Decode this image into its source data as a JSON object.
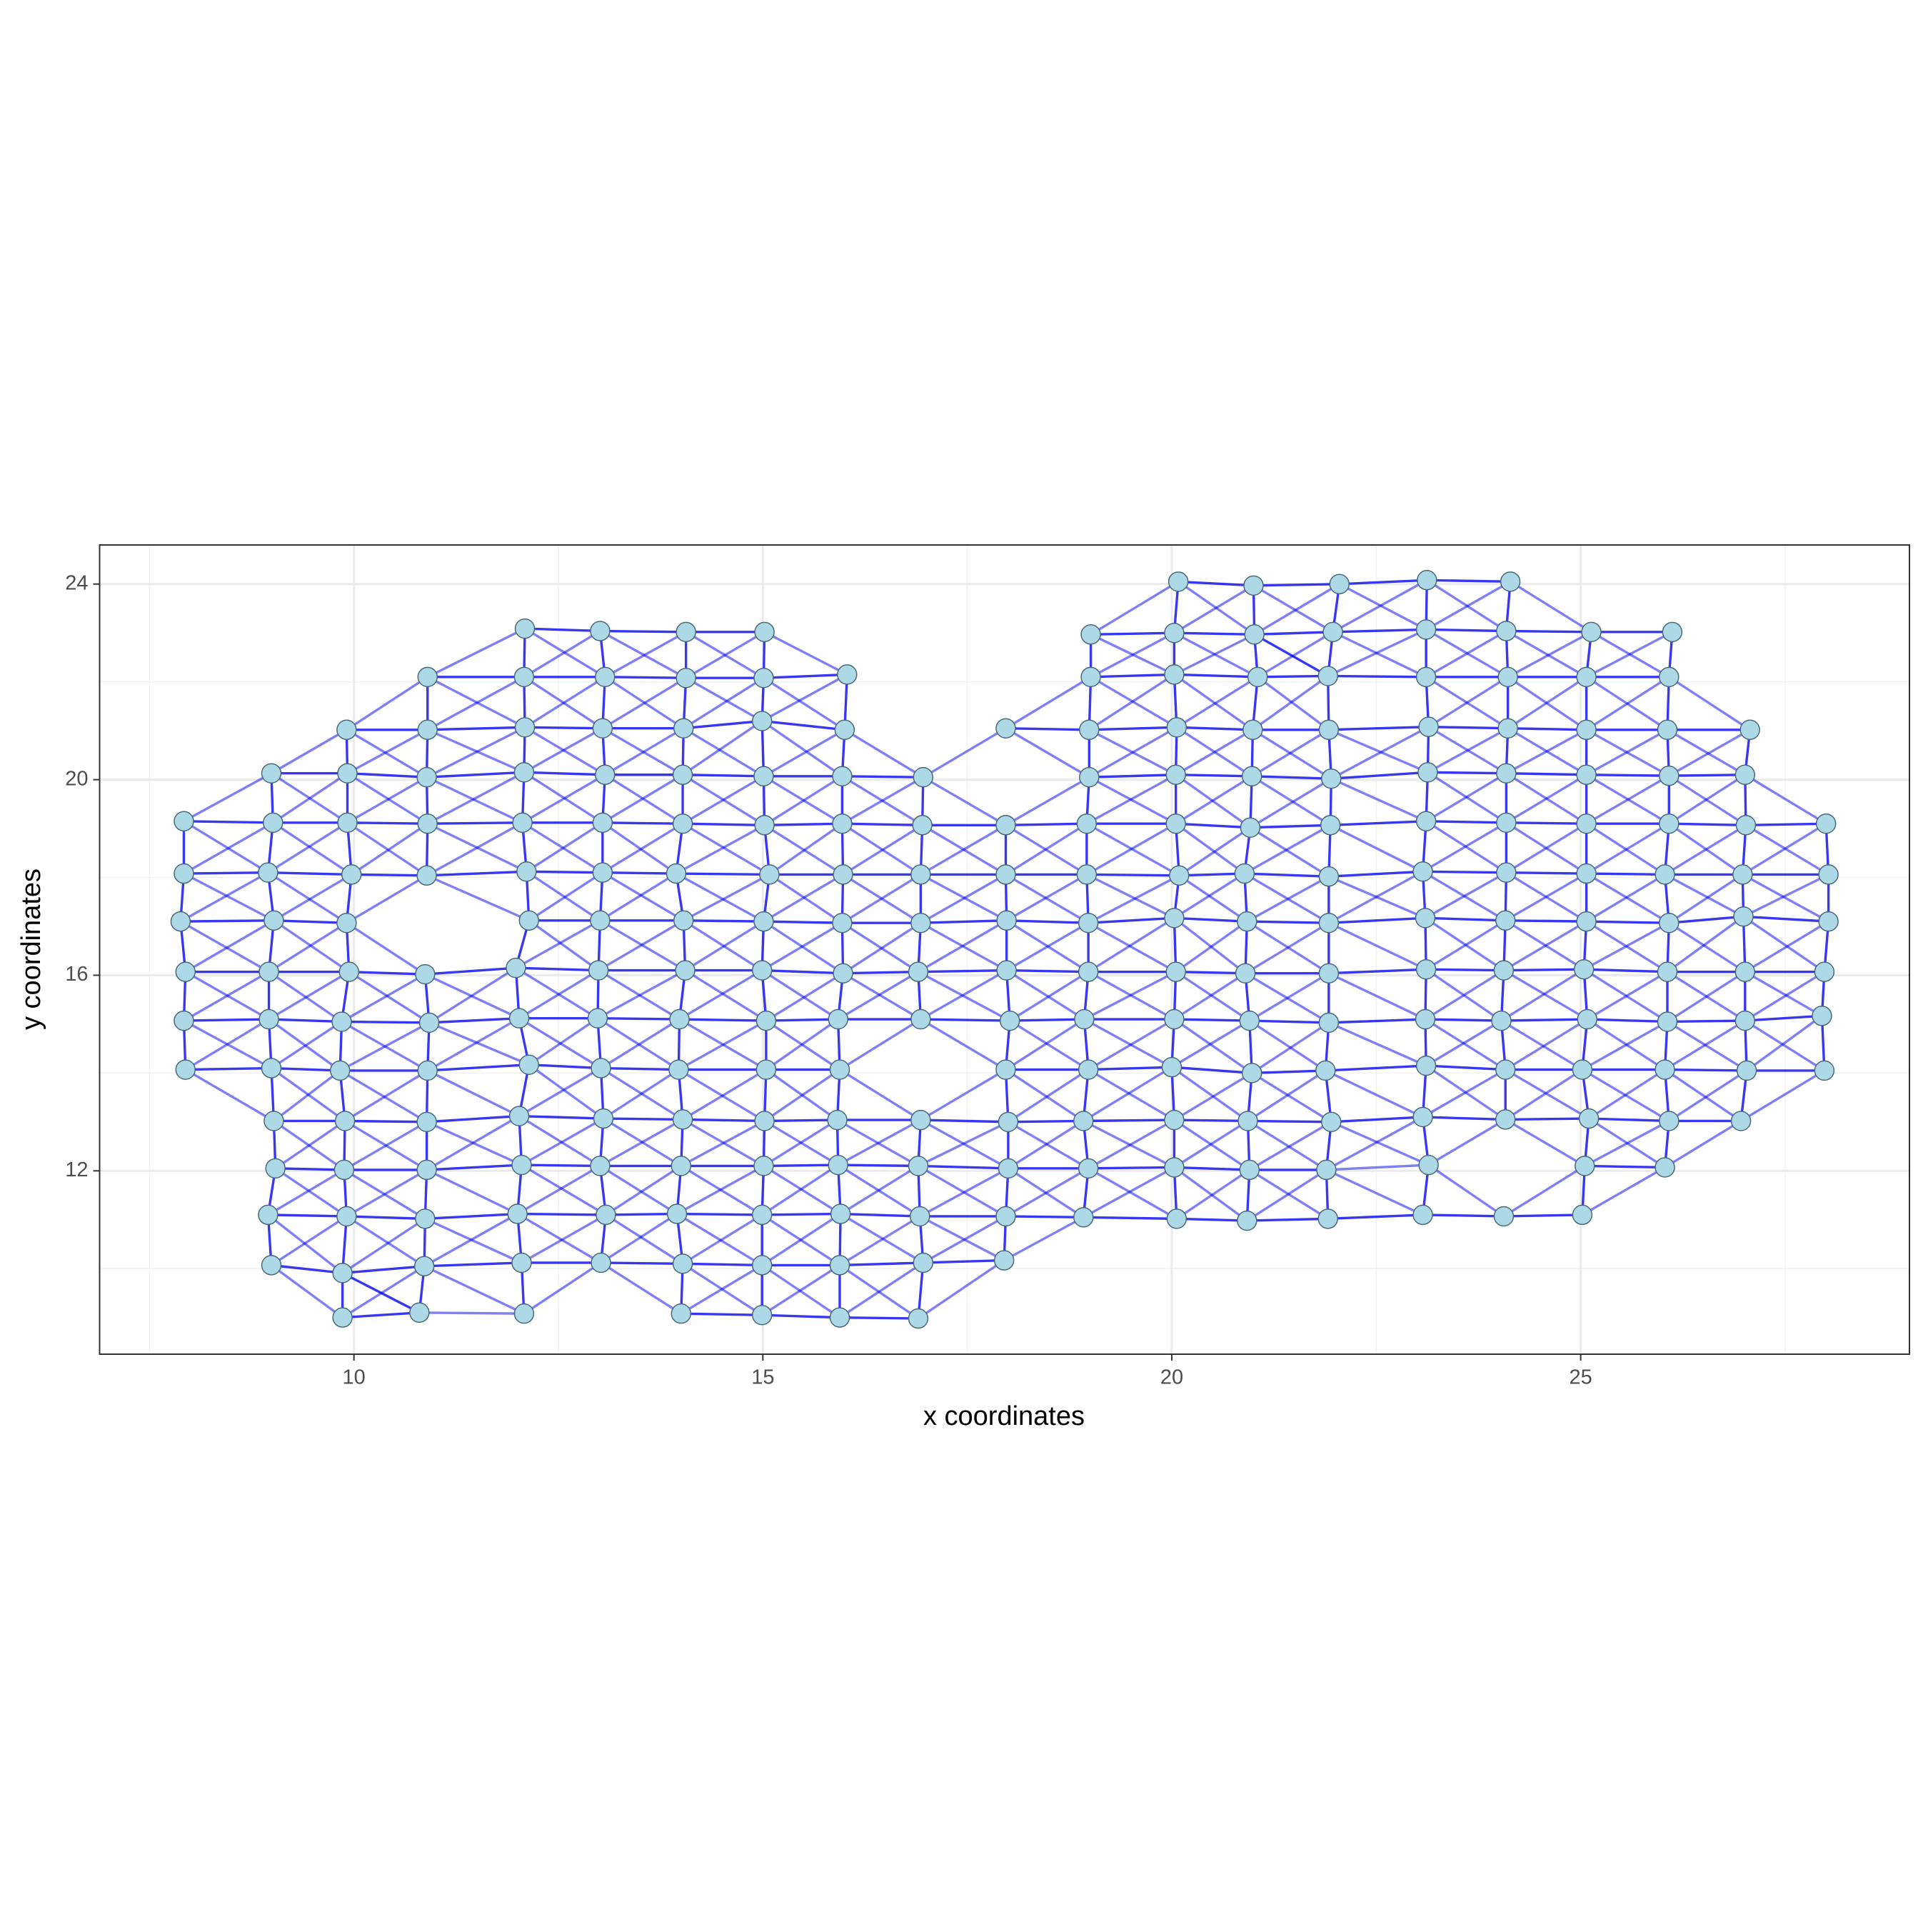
{
  "chart_data": {
    "type": "scatter",
    "x_label": "x coordinates",
    "y_label": "y coordinates",
    "xlim": [
      6.89,
      29.02
    ],
    "ylim": [
      8.25,
      24.8
    ],
    "xticks": [
      10,
      15,
      20,
      25
    ],
    "yticks": [
      12,
      16,
      20,
      24
    ],
    "grid": true,
    "color": "#add8e6",
    "edge_color": "#0000ee",
    "x": [
      20.08,
      21.0,
      22.05,
      23.12,
      24.14,
      12.09,
      13.01,
      14.06,
      15.02,
      19.01,
      20.03,
      21.01,
      21.97,
      23.11,
      24.09,
      25.13,
      26.12,
      10.9,
      12.08,
      13.07,
      14.06,
      15.01,
      16.03,
      19.01,
      20.03,
      21.05,
      21.91,
      23.11,
      24.11,
      25.07,
      26.08,
      9.91,
      10.9,
      12.09,
      13.04,
      14.03,
      14.99,
      16.0,
      17.97,
      18.99,
      20.06,
      20.99,
      21.92,
      23.14,
      24.11,
      25.07,
      26.06,
      27.07,
      8.99,
      9.92,
      10.89,
      12.08,
      13.07,
      14.02,
      15.01,
      15.97,
      16.96,
      18.99,
      20.05,
      20.98,
      21.95,
      23.13,
      24.09,
      25.07,
      26.08,
      27.01,
      7.92,
      9.01,
      9.92,
      10.9,
      12.06,
      13.04,
      14.02,
      15.02,
      15.97,
      16.95,
      17.97,
      18.96,
      20.05,
      20.96,
      21.94,
      23.11,
      24.09,
      25.07,
      26.08,
      27.02,
      28.0,
      7.92,
      8.95,
      9.97,
      10.89,
      12.11,
      13.04,
      13.94,
      15.08,
      15.98,
      16.93,
      17.97,
      18.96,
      20.09,
      20.89,
      21.92,
      23.07,
      24.09,
      25.07,
      26.03,
      26.98,
      28.03,
      7.88,
      9.02,
      9.91,
      12.14,
      13.01,
      14.03,
      15.01,
      15.97,
      16.93,
      17.98,
      18.98,
      20.03,
      20.92,
      21.92,
      23.1,
      24.08,
      25.07,
      26.08,
      26.99,
      28.03,
      7.94,
      8.96,
      9.94,
      10.87,
      11.98,
      12.99,
      14.05,
      14.99,
      15.98,
      16.9,
      17.98,
      18.98,
      20.05,
      20.9,
      21.92,
      23.11,
      24.06,
      25.04,
      26.06,
      27.01,
      27.98,
      7.92,
      8.96,
      9.85,
      10.92,
      12.02,
      12.98,
      13.98,
      15.04,
      15.92,
      16.93,
      18.02,
      18.93,
      20.03,
      20.95,
      21.92,
      23.1,
      24.03,
      25.08,
      26.06,
      27.01,
      27.95,
      7.94,
      8.99,
      9.83,
      10.9,
      12.14,
      13.02,
      13.97,
      15.04,
      15.94,
      17.97,
      18.98,
      20.0,
      20.98,
      21.88,
      23.11,
      24.08,
      25.02,
      26.03,
      27.03,
      27.98,
      9.02,
      9.89,
      10.89,
      12.02,
      13.05,
      14.02,
      15.02,
      15.91,
      16.93,
      18.0,
      18.92,
      20.03,
      20.93,
      21.95,
      23.07,
      24.08,
      25.1,
      26.08,
      26.96,
      9.04,
      9.88,
      10.89,
      12.05,
      13.01,
      14.0,
      15.01,
      15.92,
      16.9,
      18.0,
      18.98,
      20.03,
      20.95,
      21.89,
      23.14,
      25.05,
      26.03,
      8.95,
      9.91,
      10.87,
      12.0,
      13.08,
      13.95,
      14.99,
      15.95,
      16.92,
      17.97,
      18.92,
      20.06,
      20.92,
      21.91,
      23.07,
      24.06,
      25.02,
      8.99,
      9.86,
      10.86,
      12.05,
      13.02,
      14.02,
      14.99,
      15.94,
      16.96,
      17.95,
      9.86,
      10.8,
      12.08,
      14.0,
      14.99,
      15.94,
      16.9
    ],
    "y": [
      24.05,
      23.97,
      24.0,
      24.08,
      24.05,
      23.09,
      23.04,
      23.02,
      23.02,
      22.97,
      23.0,
      22.97,
      23.02,
      23.07,
      23.04,
      23.02,
      23.02,
      22.1,
      22.1,
      22.1,
      22.08,
      22.08,
      22.15,
      22.1,
      22.15,
      22.1,
      22.12,
      22.1,
      22.1,
      22.1,
      22.1,
      21.02,
      21.02,
      21.07,
      21.05,
      21.05,
      21.2,
      21.02,
      21.05,
      21.02,
      21.07,
      21.02,
      21.02,
      21.08,
      21.05,
      21.02,
      21.02,
      21.02,
      20.13,
      20.13,
      20.05,
      20.15,
      20.1,
      20.1,
      20.07,
      20.07,
      20.05,
      20.05,
      20.1,
      20.07,
      20.02,
      20.15,
      20.13,
      20.1,
      20.08,
      20.1,
      19.15,
      19.12,
      19.12,
      19.1,
      19.12,
      19.12,
      19.1,
      19.07,
      19.1,
      19.07,
      19.07,
      19.1,
      19.1,
      19.02,
      19.07,
      19.15,
      19.12,
      19.1,
      19.1,
      19.07,
      19.1,
      18.08,
      18.1,
      18.06,
      18.04,
      18.12,
      18.1,
      18.08,
      18.06,
      18.06,
      18.06,
      18.06,
      18.06,
      18.04,
      18.08,
      18.02,
      18.12,
      18.1,
      18.08,
      18.06,
      18.06,
      18.06,
      17.1,
      17.12,
      17.07,
      17.12,
      17.12,
      17.12,
      17.1,
      17.07,
      17.07,
      17.12,
      17.07,
      17.17,
      17.1,
      17.07,
      17.17,
      17.12,
      17.1,
      17.07,
      17.2,
      17.1,
      16.07,
      16.07,
      16.07,
      16.02,
      16.15,
      16.1,
      16.1,
      16.1,
      16.04,
      16.07,
      16.1,
      16.07,
      16.07,
      16.04,
      16.04,
      16.12,
      16.1,
      16.12,
      16.07,
      16.07,
      16.07,
      15.07,
      15.1,
      15.05,
      15.03,
      15.12,
      15.12,
      15.1,
      15.07,
      15.1,
      15.1,
      15.07,
      15.1,
      15.1,
      15.07,
      15.03,
      15.1,
      15.07,
      15.1,
      15.05,
      15.07,
      15.17,
      14.07,
      14.1,
      14.05,
      14.05,
      14.17,
      14.1,
      14.07,
      14.07,
      14.07,
      14.07,
      14.07,
      14.12,
      14.0,
      14.05,
      14.15,
      14.07,
      14.07,
      14.07,
      14.05,
      14.05,
      13.02,
      13.02,
      13.0,
      13.12,
      13.07,
      13.05,
      13.02,
      13.04,
      13.04,
      13.0,
      13.02,
      13.04,
      13.02,
      13.0,
      13.1,
      13.05,
      13.07,
      13.02,
      13.02,
      12.05,
      12.02,
      12.02,
      12.12,
      12.1,
      12.1,
      12.1,
      12.12,
      12.1,
      12.05,
      12.05,
      12.07,
      12.02,
      12.02,
      12.12,
      12.1,
      12.07,
      11.1,
      11.07,
      11.02,
      11.12,
      11.1,
      11.12,
      11.1,
      11.12,
      11.07,
      11.07,
      11.05,
      11.02,
      10.98,
      11.02,
      11.1,
      11.07,
      11.1,
      10.07,
      9.91,
      10.05,
      10.12,
      10.12,
      10.1,
      10.07,
      10.07,
      10.12,
      10.17,
      9.0,
      9.1,
      9.08,
      9.08,
      9.05,
      9.0,
      8.98
    ]
  }
}
